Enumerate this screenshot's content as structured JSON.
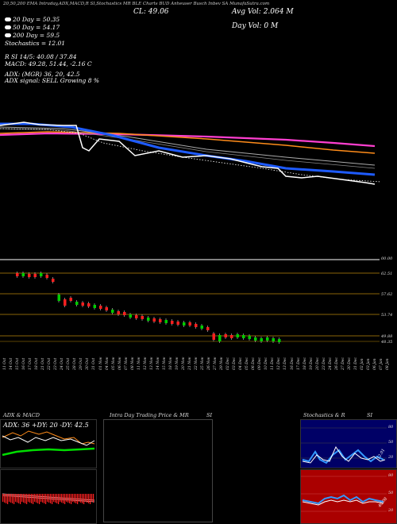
{
  "header": {
    "top_line": "20,50,200 EMA Intraday,ADX,MACD,R SI,Stochastics MR BLE Charts BUD Anheuser Busch Inbev SA MunafaSutra.com",
    "cl_label": "CL: 49.06",
    "avg_vol": "Avg Vol: 2.064 M",
    "day_vol": "Day Vol: 0 M"
  },
  "legend": {
    "ema20": "20 Day = 50.35",
    "ema50": "50 Day = 54.17",
    "ema200": "200 Day = 59.5",
    "stoch": "Stochastics = 12.01",
    "rsi": "R SI 14/5: 40.08 / 37.84",
    "macd": "MACD: 49.28, 51.44, -2.16 C",
    "adx": "ADX: (MGR) 36, 20, 42.5",
    "adx_signal": "ADX signal: SELL Growing 8 %"
  },
  "price_axis": {
    "top": "00.00",
    "levels": [
      "62.51",
      "57.62",
      "53.74",
      "49.88",
      "48.35"
    ]
  },
  "dates": [
    "11 Oct",
    "14 Oct",
    "15 Oct",
    "16 Oct",
    "17 Oct",
    "18 Oct",
    "21 Oct",
    "22 Oct",
    "23 Oct",
    "24 Oct",
    "25 Oct",
    "28 Oct",
    "29 Oct",
    "30 Oct",
    "31 Oct",
    "01 Nov",
    "04 Nov",
    "05 Nov",
    "06 Nov",
    "07 Nov",
    "08 Nov",
    "11 Nov",
    "12 Nov",
    "13 Nov",
    "14 Nov",
    "15 Nov",
    "18 Nov",
    "19 Nov",
    "20 Nov",
    "21 Nov",
    "22 Nov",
    "25 Nov",
    "26 Nov",
    "27 Nov",
    "29 Nov",
    "02 Dec",
    "03 Dec",
    "04 Dec",
    "05 Dec",
    "06 Dec",
    "09 Dec",
    "10 Dec",
    "11 Dec",
    "12 Dec",
    "13 Dec",
    "16 Dec",
    "17 Dec",
    "18 Dec",
    "19 Dec",
    "20 Dec",
    "23 Dec",
    "24 Dec",
    "26 Dec",
    "27 Dec",
    "30 Dec",
    "31 Dec",
    "02 Jan",
    "03 Jan",
    "06 Jan",
    "07 Jan",
    "08 Jan"
  ],
  "panels": {
    "adx_title": "ADX & MACD",
    "adx_text": "ADX: 36  +DY: 20  -DY: 42.5",
    "intraday_title": "Intra Day Trading Price & MR",
    "intraday_si": "SI",
    "stoch_title": "Stochastics & R",
    "stoch_si": "SI",
    "stoch_scale": [
      "80",
      "50",
      "20"
    ],
    "rsi_scale": [
      "80",
      "50",
      "20"
    ],
    "stoch_value": "12.01",
    "rsi_value": "40.08"
  },
  "colors": {
    "ema20": "#1e5bff",
    "ema50": "#ff8c1a",
    "ema200": "#ff3fd0",
    "candle_up": "#00cc00",
    "candle_down": "#ff2020",
    "gold_line": "#b8860b",
    "rsi_bg": "#aa0000",
    "stoch_bg": "#000066"
  }
}
